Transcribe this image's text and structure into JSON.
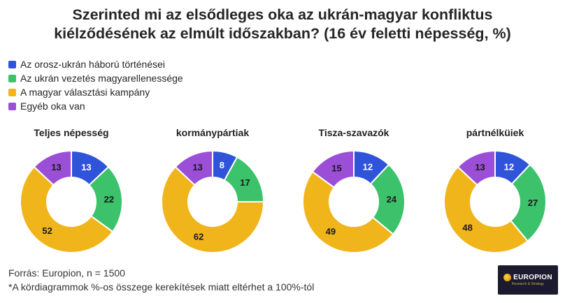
{
  "title_line1": "Szerinted mi az elsődleges oka az ukrán-magyar konfliktus",
  "title_line2": "kiélződésének az elmúlt időszakban? (16 év feletti népesség, %)",
  "footer": {
    "source": "Forrás: Europion, n = 1500",
    "note": "*A kördiagrammok %-os összege kerekítések miatt eltérhet a 100%-tól"
  },
  "logo": {
    "name": "EUROPION",
    "tagline": "Research & Strategy",
    "icon": "europion-globe-icon"
  },
  "chart_data": {
    "type": "pie",
    "variant": "donut",
    "legend_position": "top-left",
    "series": [
      {
        "name": "Az orosz-ukrán háború történései",
        "color": "#2f54d9"
      },
      {
        "name": "Az ukrán vezetés magyarellenessége",
        "color": "#3cc26b"
      },
      {
        "name": "A magyar választási kampány",
        "color": "#f0b51b"
      },
      {
        "name": "Egyéb oka van",
        "color": "#9b4fd6"
      }
    ],
    "charts": [
      {
        "title": "Teljes népesség",
        "values": [
          13,
          22,
          52,
          13
        ]
      },
      {
        "title": "kormánypártiak",
        "values": [
          8,
          17,
          62,
          13
        ]
      },
      {
        "title": "Tisza-szavazók",
        "values": [
          12,
          24,
          49,
          15
        ]
      },
      {
        "title": "pártnélküiek",
        "values": [
          12,
          27,
          48,
          13
        ]
      }
    ]
  }
}
